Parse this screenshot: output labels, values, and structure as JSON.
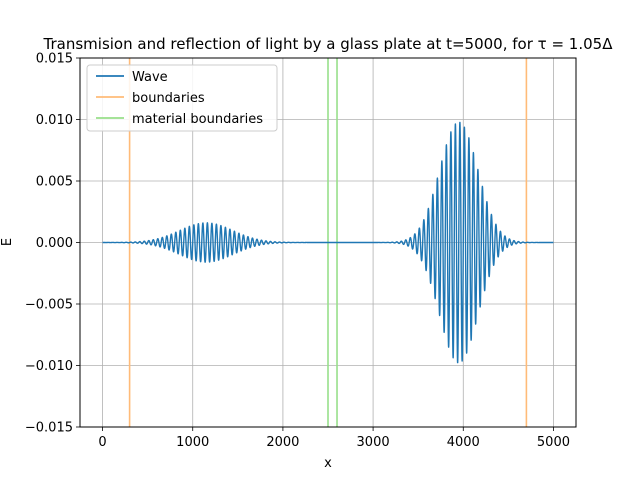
{
  "chart_data": {
    "type": "line",
    "title": "Transmision and reflection of light by a glass plate at t=5000, for τ = 1.05Δ",
    "xlabel": "x",
    "ylabel": "E",
    "xlim": [
      -250,
      5250
    ],
    "ylim": [
      -0.015,
      0.015
    ],
    "x_ticks": [
      0,
      1000,
      2000,
      3000,
      4000,
      5000
    ],
    "x_tick_labels": [
      "0",
      "1000",
      "2000",
      "3000",
      "4000",
      "5000"
    ],
    "y_ticks": [
      -0.015,
      -0.01,
      -0.005,
      0.0,
      0.005,
      0.01,
      0.015
    ],
    "y_tick_labels": [
      "−0.015",
      "−0.010",
      "−0.005",
      "0.000",
      "0.005",
      "0.010",
      "0.015"
    ],
    "grid": true,
    "legend_position": "top-left",
    "wave": {
      "x_range": [
        0,
        5000
      ],
      "oscillation_period": 50,
      "packets": [
        {
          "center": 1150,
          "peak_amplitude": 0.0016,
          "width": 420
        },
        {
          "center": 3950,
          "peak_amplitude": 0.0098,
          "width": 300
        }
      ]
    },
    "boundaries": [
      300,
      4700
    ],
    "material_boundaries": [
      2500,
      2600
    ],
    "series": [
      {
        "name": "Wave",
        "color": "#1f77b4"
      },
      {
        "name": "boundaries",
        "color": "#ffbb78"
      },
      {
        "name": "material boundaries",
        "color": "#98df8a"
      }
    ]
  }
}
